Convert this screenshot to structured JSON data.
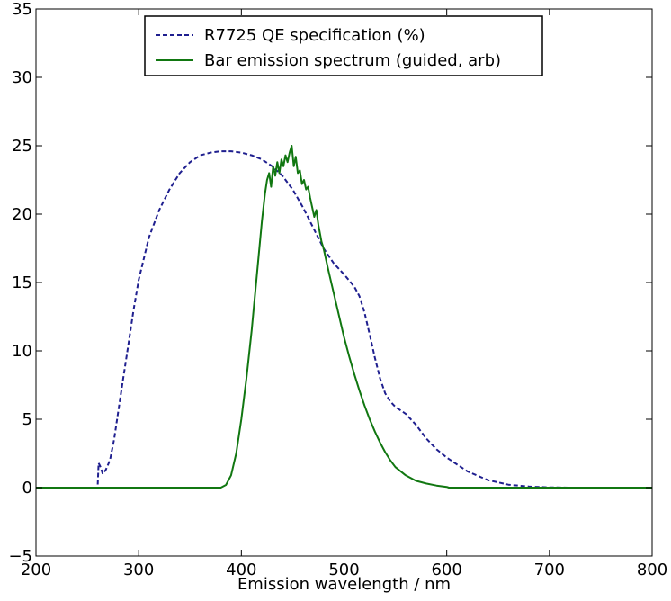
{
  "chart_data": {
    "type": "line",
    "title": "",
    "xlabel": "Emission wavelength / nm",
    "ylabel": "",
    "xlim": [
      200,
      800
    ],
    "ylim": [
      -5,
      35
    ],
    "xticks": [
      200,
      300,
      400,
      500,
      600,
      700,
      800
    ],
    "yticks": [
      -5,
      0,
      5,
      10,
      15,
      20,
      25,
      30,
      35
    ],
    "xtick_labels": [
      "200",
      "300",
      "400",
      "500",
      "600",
      "700",
      "800"
    ],
    "ytick_labels": [
      "−5",
      "0",
      "5",
      "10",
      "15",
      "20",
      "25",
      "30",
      "35"
    ],
    "grid": false,
    "legend": {
      "position": "top-center",
      "entries": [
        "R7725 QE specification (%)",
        "Bar emission spectrum (guided, arb)"
      ]
    },
    "series": [
      {
        "name": "R7725 QE specification (%)",
        "color": "#1f1f8f",
        "style": "dashed",
        "points": [
          [
            200,
            0
          ],
          [
            260,
            0
          ],
          [
            261,
            1.8
          ],
          [
            263,
            1.5
          ],
          [
            265,
            1.0
          ],
          [
            268,
            1.3
          ],
          [
            272,
            2.0
          ],
          [
            276,
            3.5
          ],
          [
            280,
            5.5
          ],
          [
            285,
            8.0
          ],
          [
            290,
            10.5
          ],
          [
            295,
            13.0
          ],
          [
            300,
            15.2
          ],
          [
            310,
            18.3
          ],
          [
            320,
            20.3
          ],
          [
            330,
            21.8
          ],
          [
            340,
            23.0
          ],
          [
            350,
            23.8
          ],
          [
            360,
            24.3
          ],
          [
            370,
            24.5
          ],
          [
            380,
            24.6
          ],
          [
            390,
            24.6
          ],
          [
            400,
            24.5
          ],
          [
            410,
            24.3
          ],
          [
            420,
            24.0
          ],
          [
            430,
            23.5
          ],
          [
            440,
            22.8
          ],
          [
            450,
            21.8
          ],
          [
            460,
            20.5
          ],
          [
            470,
            19.0
          ],
          [
            480,
            17.5
          ],
          [
            490,
            16.4
          ],
          [
            500,
            15.6
          ],
          [
            510,
            14.7
          ],
          [
            515,
            14.0
          ],
          [
            520,
            12.8
          ],
          [
            525,
            11.2
          ],
          [
            530,
            9.5
          ],
          [
            535,
            8.0
          ],
          [
            540,
            6.9
          ],
          [
            545,
            6.3
          ],
          [
            550,
            5.9
          ],
          [
            560,
            5.4
          ],
          [
            570,
            4.6
          ],
          [
            580,
            3.6
          ],
          [
            590,
            2.8
          ],
          [
            600,
            2.2
          ],
          [
            620,
            1.2
          ],
          [
            640,
            0.55
          ],
          [
            660,
            0.22
          ],
          [
            680,
            0.08
          ],
          [
            700,
            0.02
          ],
          [
            720,
            0
          ],
          [
            800,
            0
          ]
        ]
      },
      {
        "name": "Bar emission spectrum (guided, arb)",
        "color": "#117711",
        "style": "solid",
        "points": [
          [
            200,
            0
          ],
          [
            380,
            0
          ],
          [
            385,
            0.2
          ],
          [
            390,
            0.9
          ],
          [
            395,
            2.5
          ],
          [
            400,
            5.0
          ],
          [
            405,
            8.0
          ],
          [
            410,
            11.5
          ],
          [
            415,
            15.5
          ],
          [
            420,
            19.5
          ],
          [
            423,
            21.5
          ],
          [
            425,
            22.5
          ],
          [
            427,
            23.0
          ],
          [
            429,
            22.0
          ],
          [
            431,
            23.5
          ],
          [
            433,
            22.8
          ],
          [
            435,
            23.8
          ],
          [
            437,
            23.0
          ],
          [
            439,
            24.0
          ],
          [
            441,
            23.5
          ],
          [
            443,
            24.3
          ],
          [
            445,
            23.8
          ],
          [
            447,
            24.5
          ],
          [
            449,
            25.0
          ],
          [
            451,
            23.5
          ],
          [
            453,
            24.2
          ],
          [
            455,
            23.0
          ],
          [
            457,
            23.2
          ],
          [
            459,
            22.2
          ],
          [
            461,
            22.5
          ],
          [
            463,
            21.8
          ],
          [
            465,
            22.0
          ],
          [
            467,
            21.2
          ],
          [
            469,
            20.5
          ],
          [
            471,
            19.8
          ],
          [
            473,
            20.3
          ],
          [
            475,
            19.2
          ],
          [
            478,
            18.0
          ],
          [
            480,
            17.5
          ],
          [
            485,
            15.8
          ],
          [
            490,
            14.2
          ],
          [
            495,
            12.6
          ],
          [
            500,
            11.0
          ],
          [
            505,
            9.6
          ],
          [
            510,
            8.3
          ],
          [
            515,
            7.1
          ],
          [
            520,
            6.0
          ],
          [
            525,
            5.0
          ],
          [
            530,
            4.1
          ],
          [
            535,
            3.3
          ],
          [
            540,
            2.6
          ],
          [
            545,
            2.0
          ],
          [
            550,
            1.5
          ],
          [
            560,
            0.9
          ],
          [
            570,
            0.5
          ],
          [
            580,
            0.3
          ],
          [
            590,
            0.15
          ],
          [
            600,
            0.05
          ],
          [
            602,
            0
          ],
          [
            800,
            0
          ]
        ]
      }
    ]
  }
}
